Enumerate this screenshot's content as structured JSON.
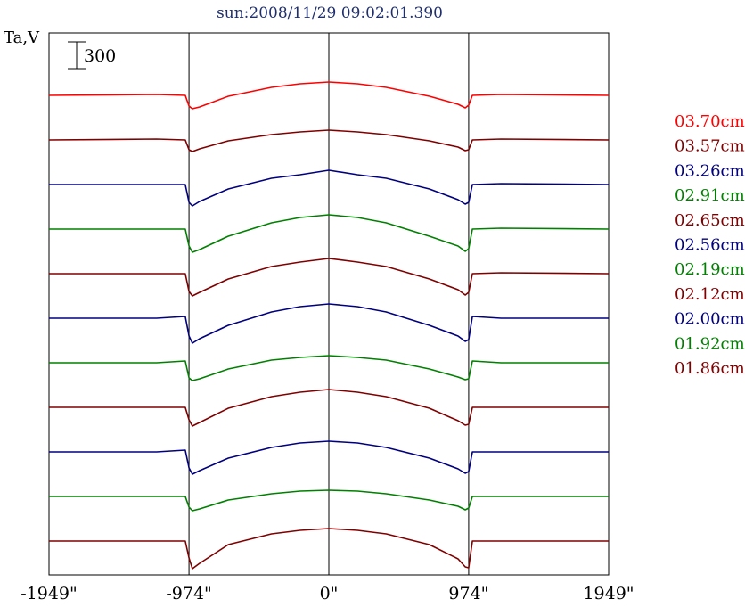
{
  "chart_data": {
    "type": "line",
    "title": "sun:2008/11/29 09:02:01.390",
    "ylabel": "Ta,V",
    "xlabel": "",
    "x_ticks": [
      "-1949\"",
      "-974\"",
      "0\"",
      "974\"",
      "1949\""
    ],
    "x_tick_values": [
      -1949,
      -974,
      0,
      974,
      1949
    ],
    "xlim": [
      -1949,
      1949
    ],
    "limb_lines": [
      -974,
      0,
      974
    ],
    "scale_bar_label": "300",
    "scale_bar_value": 300,
    "grid": false,
    "legend_position": "right",
    "profile_x": [
      -1949,
      -1200,
      -1000,
      -974,
      -950,
      -900,
      -700,
      -400,
      -200,
      0,
      200,
      400,
      700,
      900,
      950,
      974,
      1000,
      1200,
      1949
    ],
    "series": [
      {
        "name": "03.70cm",
        "color": "#ff0000",
        "background": 3000,
        "values": [
          3000,
          3010,
          3000,
          2880,
          2850,
          2870,
          2990,
          3090,
          3130,
          3150,
          3130,
          3090,
          2990,
          2900,
          2860,
          2890,
          3000,
          3010,
          3000
        ]
      },
      {
        "name": "03.57cm",
        "color": "#800000",
        "background": 2500,
        "values": [
          2500,
          2510,
          2500,
          2390,
          2370,
          2400,
          2490,
          2560,
          2590,
          2610,
          2590,
          2560,
          2490,
          2420,
          2380,
          2390,
          2500,
          2510,
          2500
        ]
      },
      {
        "name": "03.26cm",
        "color": "#000080",
        "background": 2000,
        "values": [
          2000,
          2000,
          2000,
          1800,
          1760,
          1810,
          1950,
          2070,
          2110,
          2160,
          2110,
          2070,
          1950,
          1830,
          1780,
          1800,
          2000,
          2010,
          2000
        ]
      },
      {
        "name": "02.91cm",
        "color": "#008000",
        "background": 1500,
        "values": [
          1500,
          1500,
          1500,
          1310,
          1240,
          1270,
          1420,
          1570,
          1630,
          1660,
          1630,
          1570,
          1420,
          1310,
          1250,
          1280,
          1500,
          1510,
          1500
        ]
      },
      {
        "name": "02.65cm",
        "color": "#800000",
        "background": 1000,
        "values": [
          1000,
          1000,
          1000,
          800,
          750,
          790,
          940,
          1080,
          1130,
          1170,
          1130,
          1080,
          940,
          820,
          760,
          790,
          1000,
          1010,
          1000
        ]
      },
      {
        "name": "02.56cm",
        "color": "#000080",
        "background": 500,
        "values": [
          500,
          500,
          520,
          300,
          220,
          270,
          420,
          570,
          630,
          660,
          630,
          570,
          420,
          300,
          240,
          260,
          520,
          500,
          500
        ]
      },
      {
        "name": "02.19cm",
        "color": "#008000",
        "background": 0,
        "values": [
          0,
          0,
          20,
          -170,
          -200,
          -180,
          -70,
          30,
          60,
          80,
          60,
          30,
          -70,
          -160,
          -190,
          -180,
          20,
          0,
          0
        ]
      },
      {
        "name": "02.12cm",
        "color": "#800000",
        "background": -500,
        "values": [
          -500,
          -500,
          -500,
          -640,
          -710,
          -670,
          -510,
          -380,
          -330,
          -300,
          -330,
          -380,
          -510,
          -650,
          -700,
          -690,
          -500,
          -500,
          -500
        ]
      },
      {
        "name": "02.00cm",
        "color": "#000080",
        "background": -1000,
        "values": [
          -1000,
          -1000,
          -980,
          -1180,
          -1250,
          -1210,
          -1070,
          -950,
          -900,
          -880,
          -900,
          -950,
          -1070,
          -1190,
          -1240,
          -1220,
          -1000,
          -1000,
          -1000
        ]
      },
      {
        "name": "01.92cm",
        "color": "#008000",
        "background": -1500,
        "values": [
          -1500,
          -1500,
          -1500,
          -1620,
          -1660,
          -1640,
          -1540,
          -1470,
          -1440,
          -1430,
          -1440,
          -1470,
          -1540,
          -1610,
          -1650,
          -1630,
          -1500,
          -1500,
          -1500
        ]
      },
      {
        "name": "01.86cm",
        "color": "#800000",
        "background": -2000,
        "values": [
          -2000,
          -2000,
          -2000,
          -2190,
          -2310,
          -2250,
          -2040,
          -1920,
          -1880,
          -1860,
          -1880,
          -1920,
          -2040,
          -2200,
          -2290,
          -2300,
          -2000,
          -2000,
          -2000
        ]
      }
    ]
  }
}
